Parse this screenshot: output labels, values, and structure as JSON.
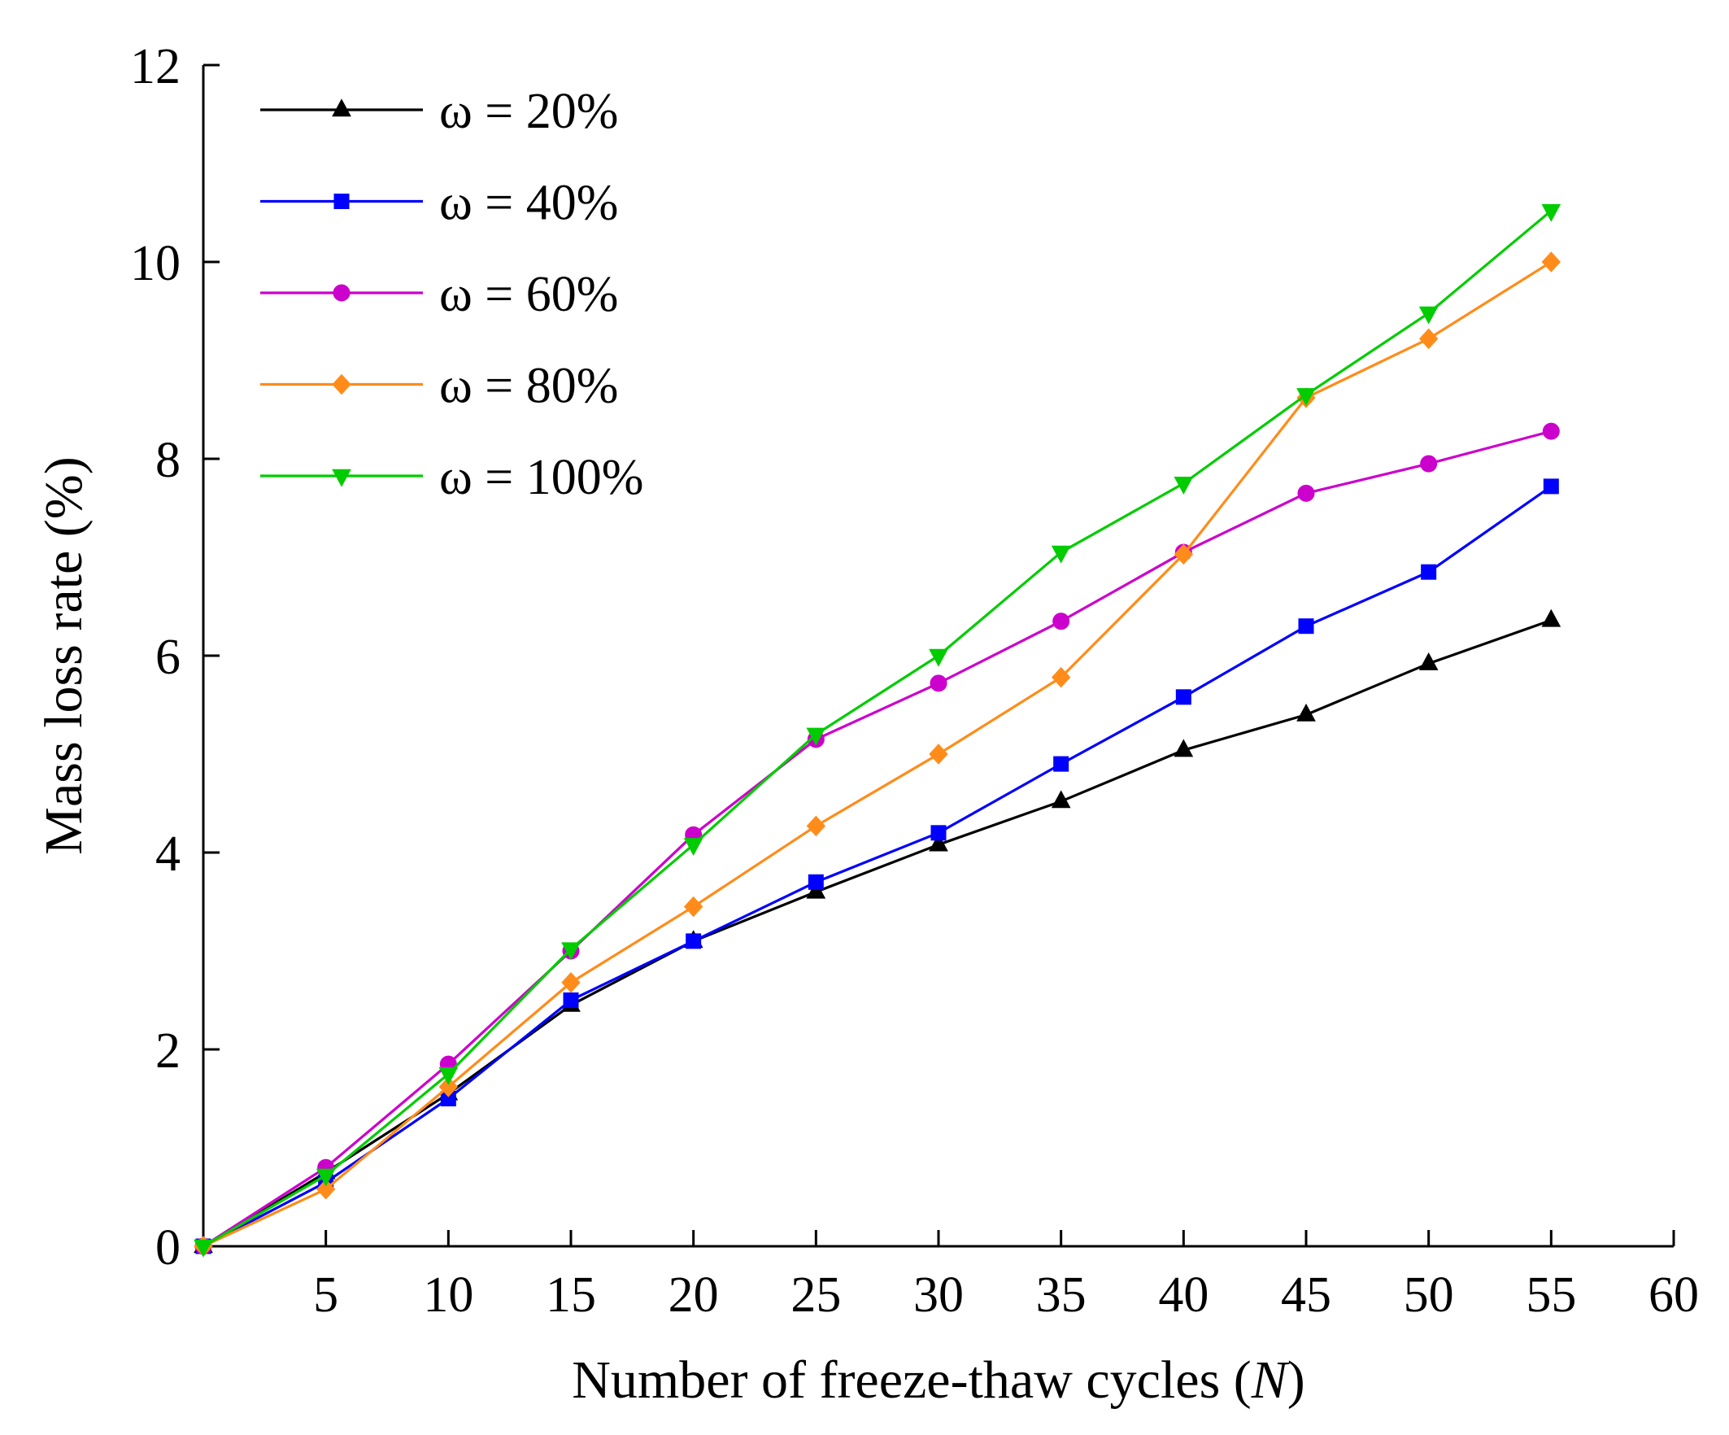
{
  "chart_data": {
    "type": "line",
    "title": "",
    "xlabel": "Number of freeze-thaw cycles (N)",
    "xlabel_main": "Number of freeze-thaw cycles (",
    "xlabel_italic": "N",
    "xlabel_end": ")",
    "ylabel": "Mass loss rate (%)",
    "xlim": [
      0,
      60
    ],
    "ylim": [
      0,
      12
    ],
    "x_ticks": [
      5,
      10,
      15,
      20,
      25,
      30,
      35,
      40,
      45,
      50,
      55,
      60
    ],
    "y_ticks": [
      0,
      2,
      4,
      6,
      8,
      10,
      12
    ],
    "grid": false,
    "legend_position": "top-left",
    "x": [
      0,
      5,
      10,
      15,
      20,
      25,
      30,
      35,
      40,
      45,
      50,
      55
    ],
    "series": [
      {
        "name": "ω = 20%",
        "color": "#000000",
        "marker": "triangle-up",
        "values": [
          0,
          0.75,
          1.55,
          2.45,
          3.1,
          3.6,
          4.08,
          4.52,
          5.04,
          5.4,
          5.92,
          6.36
        ]
      },
      {
        "name": "ω = 40%",
        "color": "#0000ff",
        "marker": "square",
        "values": [
          0,
          0.65,
          1.5,
          2.5,
          3.1,
          3.7,
          4.2,
          4.9,
          5.58,
          6.3,
          6.85,
          7.72
        ]
      },
      {
        "name": "ω = 60%",
        "color": "#cc00cc",
        "marker": "circle",
        "values": [
          0,
          0.8,
          1.85,
          3.0,
          4.18,
          5.15,
          5.72,
          6.35,
          7.05,
          7.65,
          7.95,
          8.28
        ]
      },
      {
        "name": "ω = 80%",
        "color": "#ff8c1a",
        "marker": "diamond",
        "values": [
          0,
          0.58,
          1.62,
          2.68,
          3.45,
          4.27,
          5.0,
          5.78,
          7.03,
          8.62,
          9.22,
          10.0
        ]
      },
      {
        "name": "ω = 100%",
        "color": "#00cc00",
        "marker": "triangle-down",
        "values": [
          0,
          0.72,
          1.75,
          3.02,
          4.08,
          5.2,
          6.0,
          7.05,
          7.75,
          8.65,
          9.48,
          10.52
        ]
      }
    ]
  }
}
